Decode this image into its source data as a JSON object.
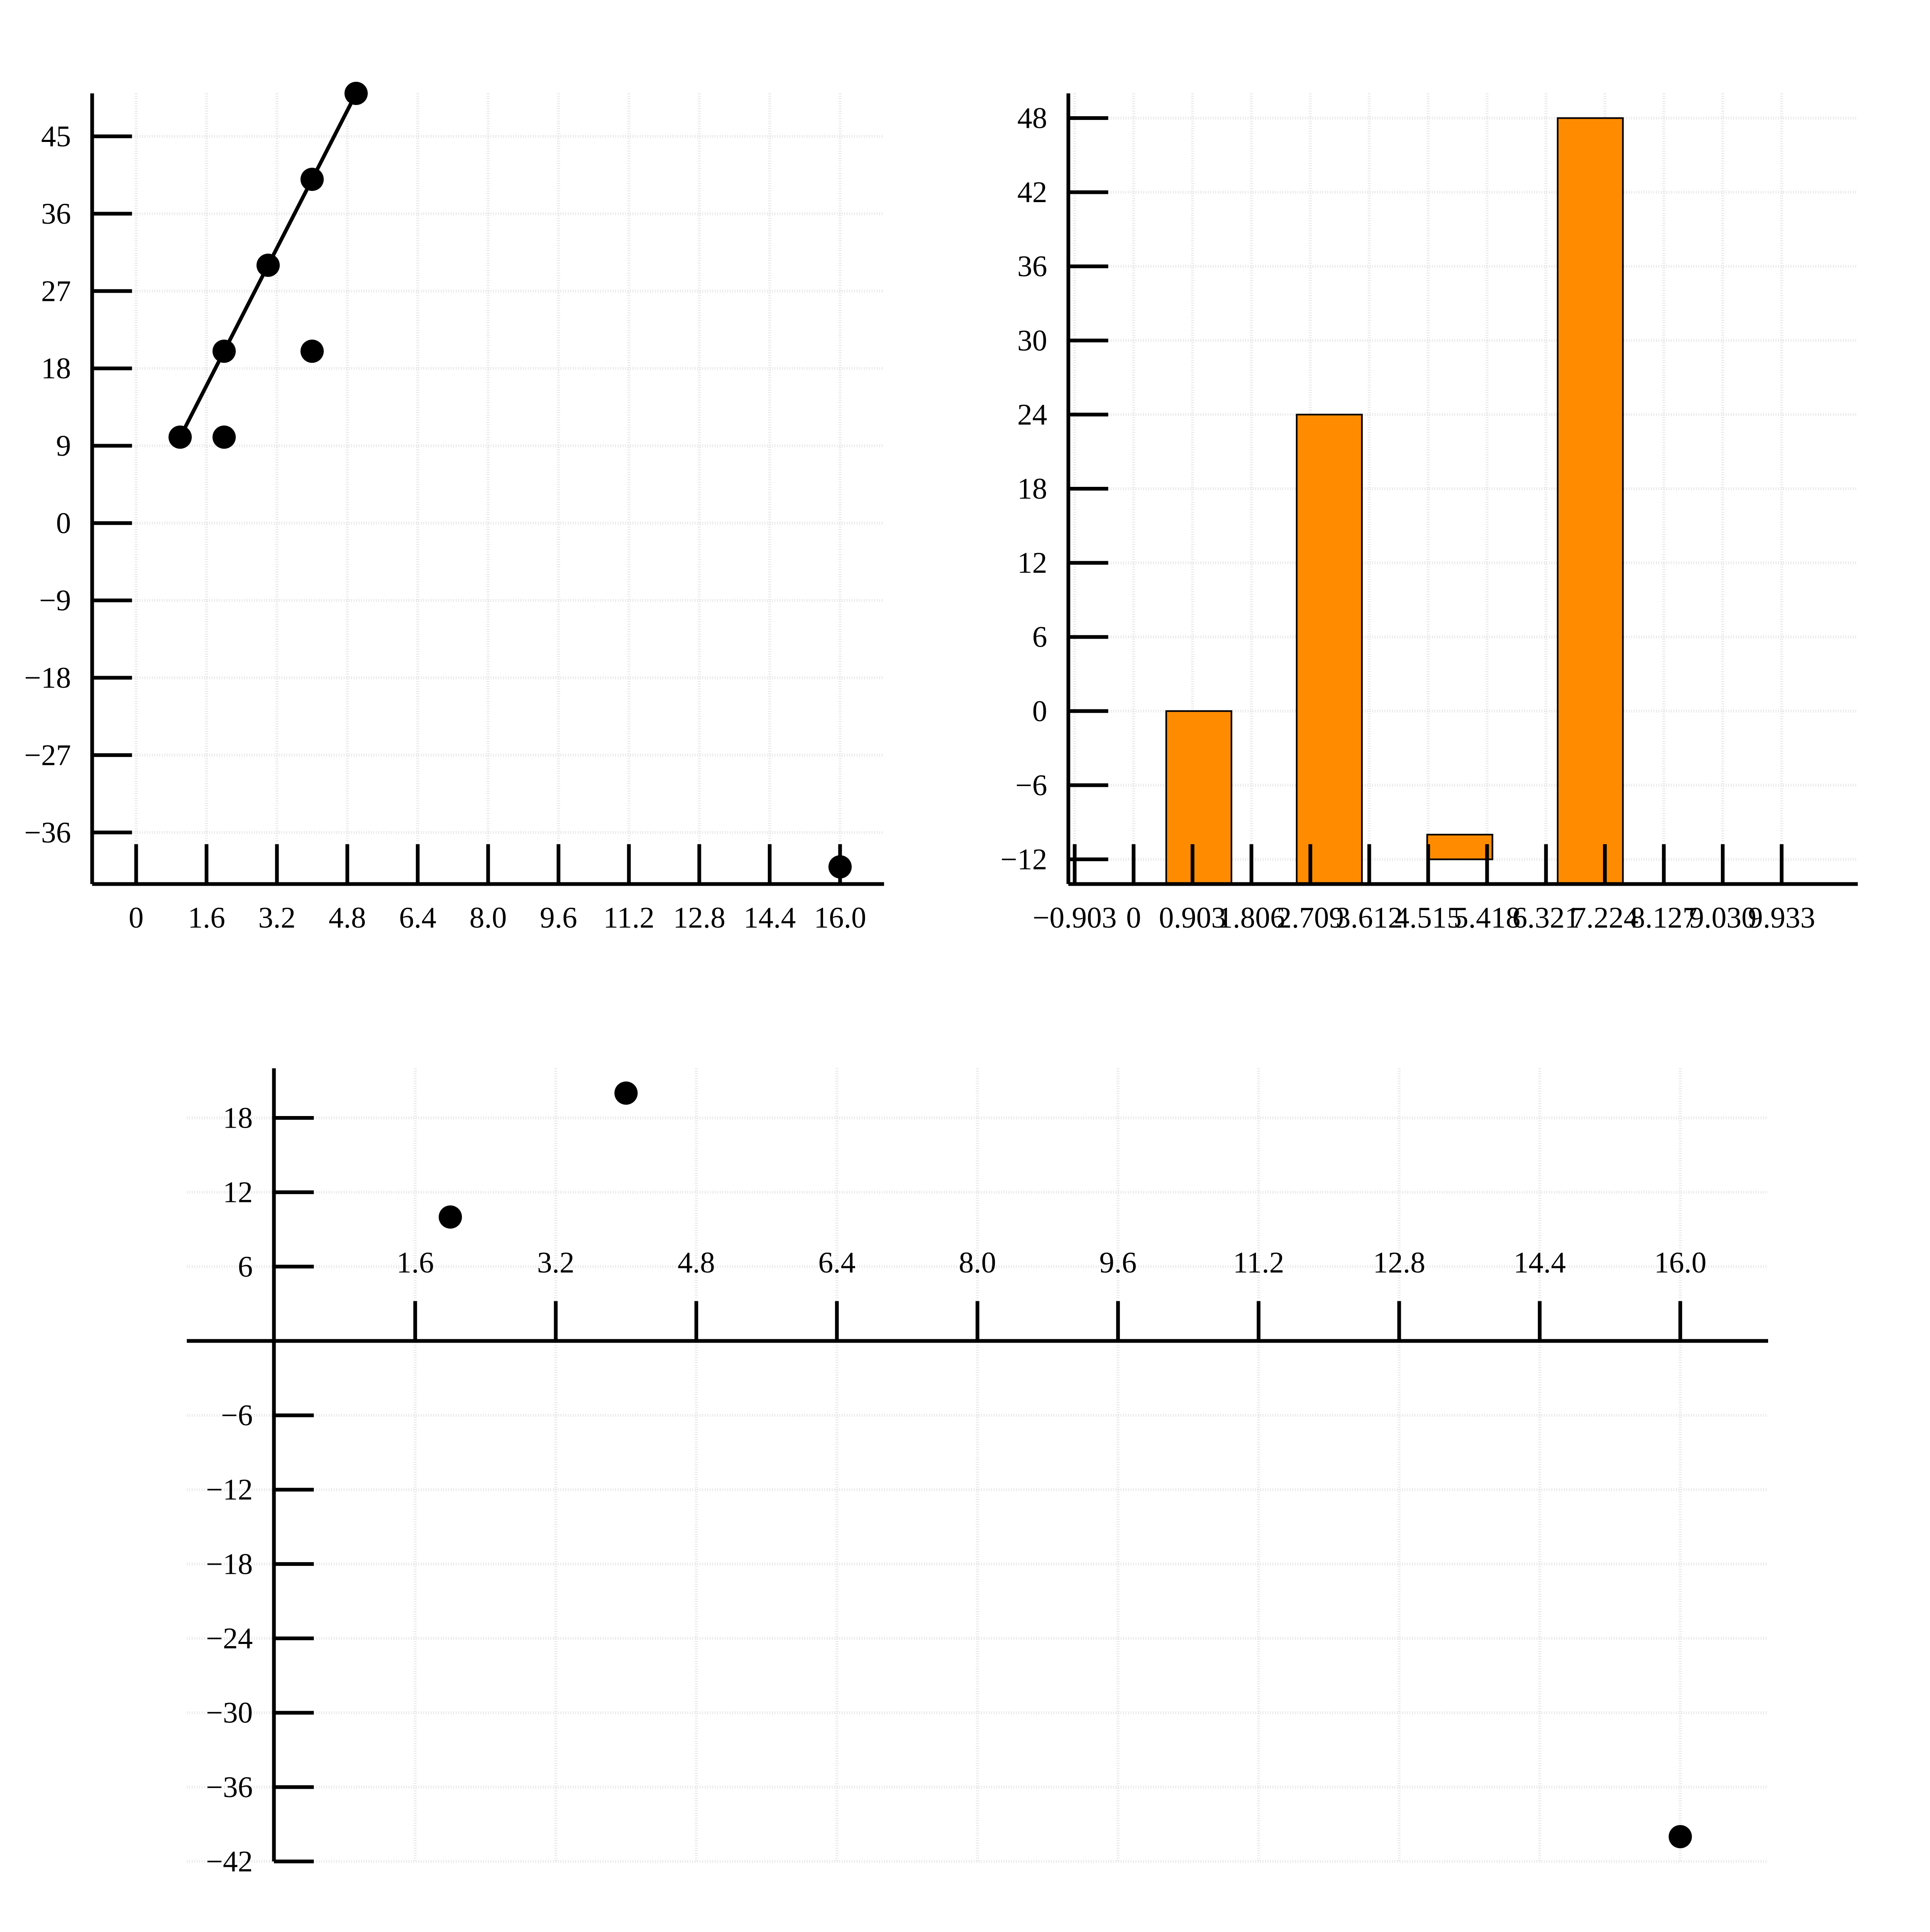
{
  "chart_data": [
    {
      "id": "top-left",
      "type": "scatter",
      "title": "",
      "xlabel": "",
      "ylabel": "",
      "grid": true,
      "xlim": [
        -1.0,
        17.0
      ],
      "ylim": [
        -42,
        50
      ],
      "x_ticks": [
        0,
        1.6,
        3.2,
        4.8,
        6.4,
        8.0,
        9.6,
        11.2,
        12.8,
        14.4,
        16.0
      ],
      "x_tick_labels": [
        "0",
        "1.6",
        "3.2",
        "4.8",
        "6.4",
        "8.0",
        "9.6",
        "11.2",
        "12.8",
        "14.4",
        "16.0"
      ],
      "y_ticks": [
        -36,
        -27,
        -18,
        -9,
        0,
        9,
        18,
        27,
        36,
        45
      ],
      "y_tick_labels": [
        "−36",
        "−27",
        "−18",
        "−9",
        "0",
        "9",
        "18",
        "27",
        "36",
        "45"
      ],
      "series": [
        {
          "kind": "line",
          "x": [
            1,
            2,
            3,
            4,
            5
          ],
          "y": [
            10,
            20,
            30,
            40,
            50
          ],
          "color": "#000000"
        },
        {
          "kind": "points",
          "x": [
            1,
            2,
            2,
            3,
            4,
            4,
            5,
            16
          ],
          "y": [
            10,
            10,
            20,
            30,
            20,
            40,
            50,
            -40
          ],
          "color": "#000000"
        }
      ]
    },
    {
      "id": "top-right",
      "type": "bar",
      "title": "",
      "xlabel": "",
      "ylabel": "",
      "grid": true,
      "xlim": [
        -1.0,
        11.1
      ],
      "ylim": [
        -14,
        50
      ],
      "bar_color": "#ff8c00",
      "bar_width": 1.0,
      "bars": [
        {
          "x": 1,
          "y": 0
        },
        {
          "x": 3,
          "y": 24
        },
        {
          "x": 5,
          "y": -12
        },
        {
          "x": 7,
          "y": 48
        }
      ],
      "x_ticks": [
        -0.903,
        0,
        0.903,
        1.806,
        2.709,
        3.612,
        4.515,
        5.418,
        6.321,
        7.224,
        8.127,
        9.03,
        9.933
      ],
      "x_tick_labels": [
        "−0.903",
        "0",
        "0.903",
        "1.806",
        "2.709",
        "3.612",
        "4.515",
        "5.418",
        "6.321",
        "7.224",
        "8.127",
        "9.030",
        "9.933"
      ],
      "y_ticks": [
        -12,
        -6,
        0,
        6,
        12,
        18,
        24,
        30,
        36,
        42,
        48
      ],
      "y_tick_labels": [
        "−12",
        "−6",
        "0",
        "6",
        "12",
        "18",
        "24",
        "30",
        "36",
        "42",
        "48"
      ]
    },
    {
      "id": "bottom",
      "type": "scatter",
      "title": "",
      "xlabel": "",
      "ylabel": "",
      "grid": true,
      "xlim": [
        -1.0,
        17.0
      ],
      "ylim": [
        -42,
        22
      ],
      "x_ticks": [
        1.6,
        3.2,
        4.8,
        6.4,
        8.0,
        9.6,
        11.2,
        12.8,
        14.4,
        16.0
      ],
      "x_tick_labels": [
        "1.6",
        "3.2",
        "4.8",
        "6.4",
        "8.0",
        "9.6",
        "11.2",
        "12.8",
        "14.4",
        "16.0"
      ],
      "y_ticks": [
        -42,
        -36,
        -30,
        -24,
        -18,
        -12,
        -6,
        6,
        12,
        18
      ],
      "y_tick_labels": [
        "−42",
        "−36",
        "−30",
        "−24",
        "−18",
        "−12",
        "−6",
        "6",
        "12",
        "18"
      ],
      "series": [
        {
          "kind": "points",
          "x": [
            2,
            4,
            16
          ],
          "y": [
            10,
            20,
            -40
          ],
          "color": "#000000"
        }
      ]
    }
  ]
}
